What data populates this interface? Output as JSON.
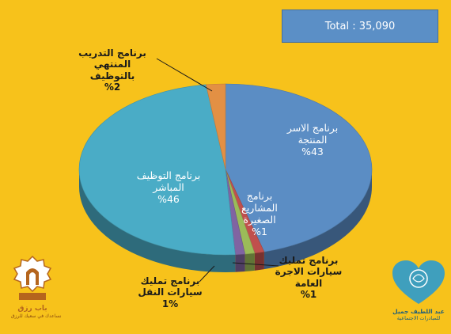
{
  "total": {
    "text": "Total : 35,090"
  },
  "chart_data": {
    "type": "pie",
    "title": "",
    "slices": [
      {
        "label": "برنامج الاسر المنتجة",
        "value": 43,
        "display": "%43",
        "color": "#5b8dc4"
      },
      {
        "label": "برنامج المشاريع الصغيرة",
        "value": 1,
        "display": "%1",
        "color": "#c0504d"
      },
      {
        "label": "برنامج تمليك سيارات الاجرة العامة",
        "value": 1,
        "display": "%1",
        "color": "#9bbb59"
      },
      {
        "label": "برنامج تمليك سيارات النقل",
        "value": 1,
        "display": "1%",
        "color": "#8064a2"
      },
      {
        "label": "برنامج التوظيف المباشر",
        "value": 46,
        "display": "%46",
        "color": "#4aacc6"
      },
      {
        "label": "برنامج التدريب المنتهي بالتوظيف",
        "value": 2,
        "display": "%2",
        "color": "#e39044"
      }
    ]
  },
  "labels": {
    "productive": {
      "l1": "برنامج الاسر",
      "l2": "المنتجة",
      "pct": "%43"
    },
    "small": {
      "l1": "برنامج",
      "l2": "المشاريع",
      "l3": "الصغيرة",
      "pct": "%1"
    },
    "taxi": {
      "l1": "برنامج تمليك",
      "l2": "سيارات الاجرة",
      "l3": "العامة",
      "pct": "%1"
    },
    "transport": {
      "l1": "برنامج تمليك",
      "l2": "سيارات النقل",
      "pct": "1%"
    },
    "direct": {
      "l1": "برنامج التوظيف",
      "l2": "المباشر",
      "pct": "%46"
    },
    "training": {
      "l1": "برنامج التدريب",
      "l2": "المنتهي",
      "l3": "بالتوظيف",
      "pct": "%2"
    }
  },
  "logos": {
    "left": {
      "name": "باب رزق",
      "tagline": "نساعدك في سعيك للرزق"
    },
    "right": {
      "name": "عبد اللطيف جميل",
      "tagline": "للمبادرات الاجتماعية"
    }
  }
}
